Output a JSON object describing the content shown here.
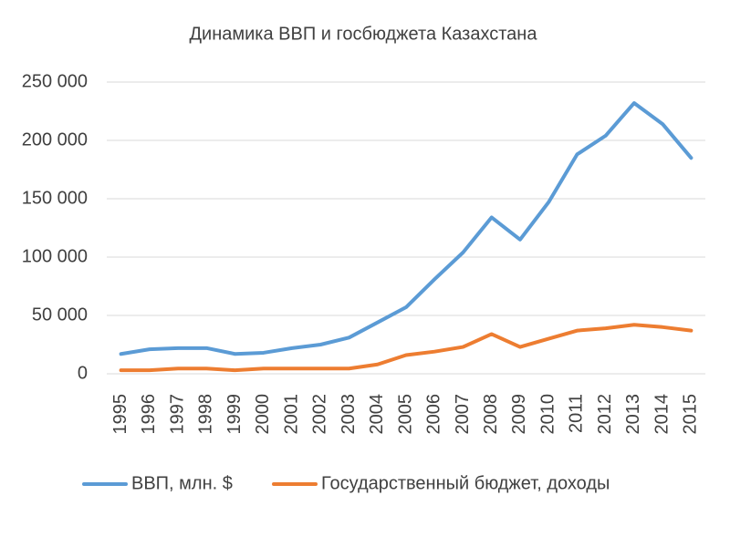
{
  "chart_data": {
    "type": "line",
    "title": "Динамика ВВП и госбюджета Казахстана",
    "categories": [
      "1995",
      "1996",
      "1997",
      "1998",
      "1999",
      "2000",
      "2001",
      "2002",
      "2003",
      "2004",
      "2005",
      "2006",
      "2007",
      "2008",
      "2009",
      "2010",
      "2011",
      "2012",
      "2013",
      "2014",
      "2015"
    ],
    "series": [
      {
        "name": "ВВП, млн. $",
        "color": "#5b9bd5",
        "values": [
          17000,
          21000,
          22000,
          22000,
          17000,
          18000,
          22000,
          25000,
          31000,
          44000,
          57000,
          81000,
          104000,
          134000,
          115000,
          147000,
          188000,
          204000,
          232000,
          214000,
          185000
        ]
      },
      {
        "name": "Государственный бюджет, доходы",
        "color": "#ed7d31",
        "values": [
          3000,
          3000,
          4500,
          4500,
          3000,
          4500,
          4500,
          4500,
          4500,
          8000,
          16000,
          19000,
          23000,
          34000,
          23000,
          30000,
          37000,
          39000,
          42000,
          40000,
          37000
        ]
      }
    ],
    "ylim": [
      0,
      250000
    ],
    "yticks": [
      0,
      {
        "value": 50000,
        "label": "50 000"
      },
      {
        "value": 100000,
        "label": "100 000"
      },
      {
        "value": 150000,
        "label": "150 000"
      },
      {
        "value": 200000,
        "label": "200 000"
      },
      {
        "value": 250000,
        "label": "250 000"
      }
    ],
    "grid": true,
    "legend": "bottom"
  }
}
